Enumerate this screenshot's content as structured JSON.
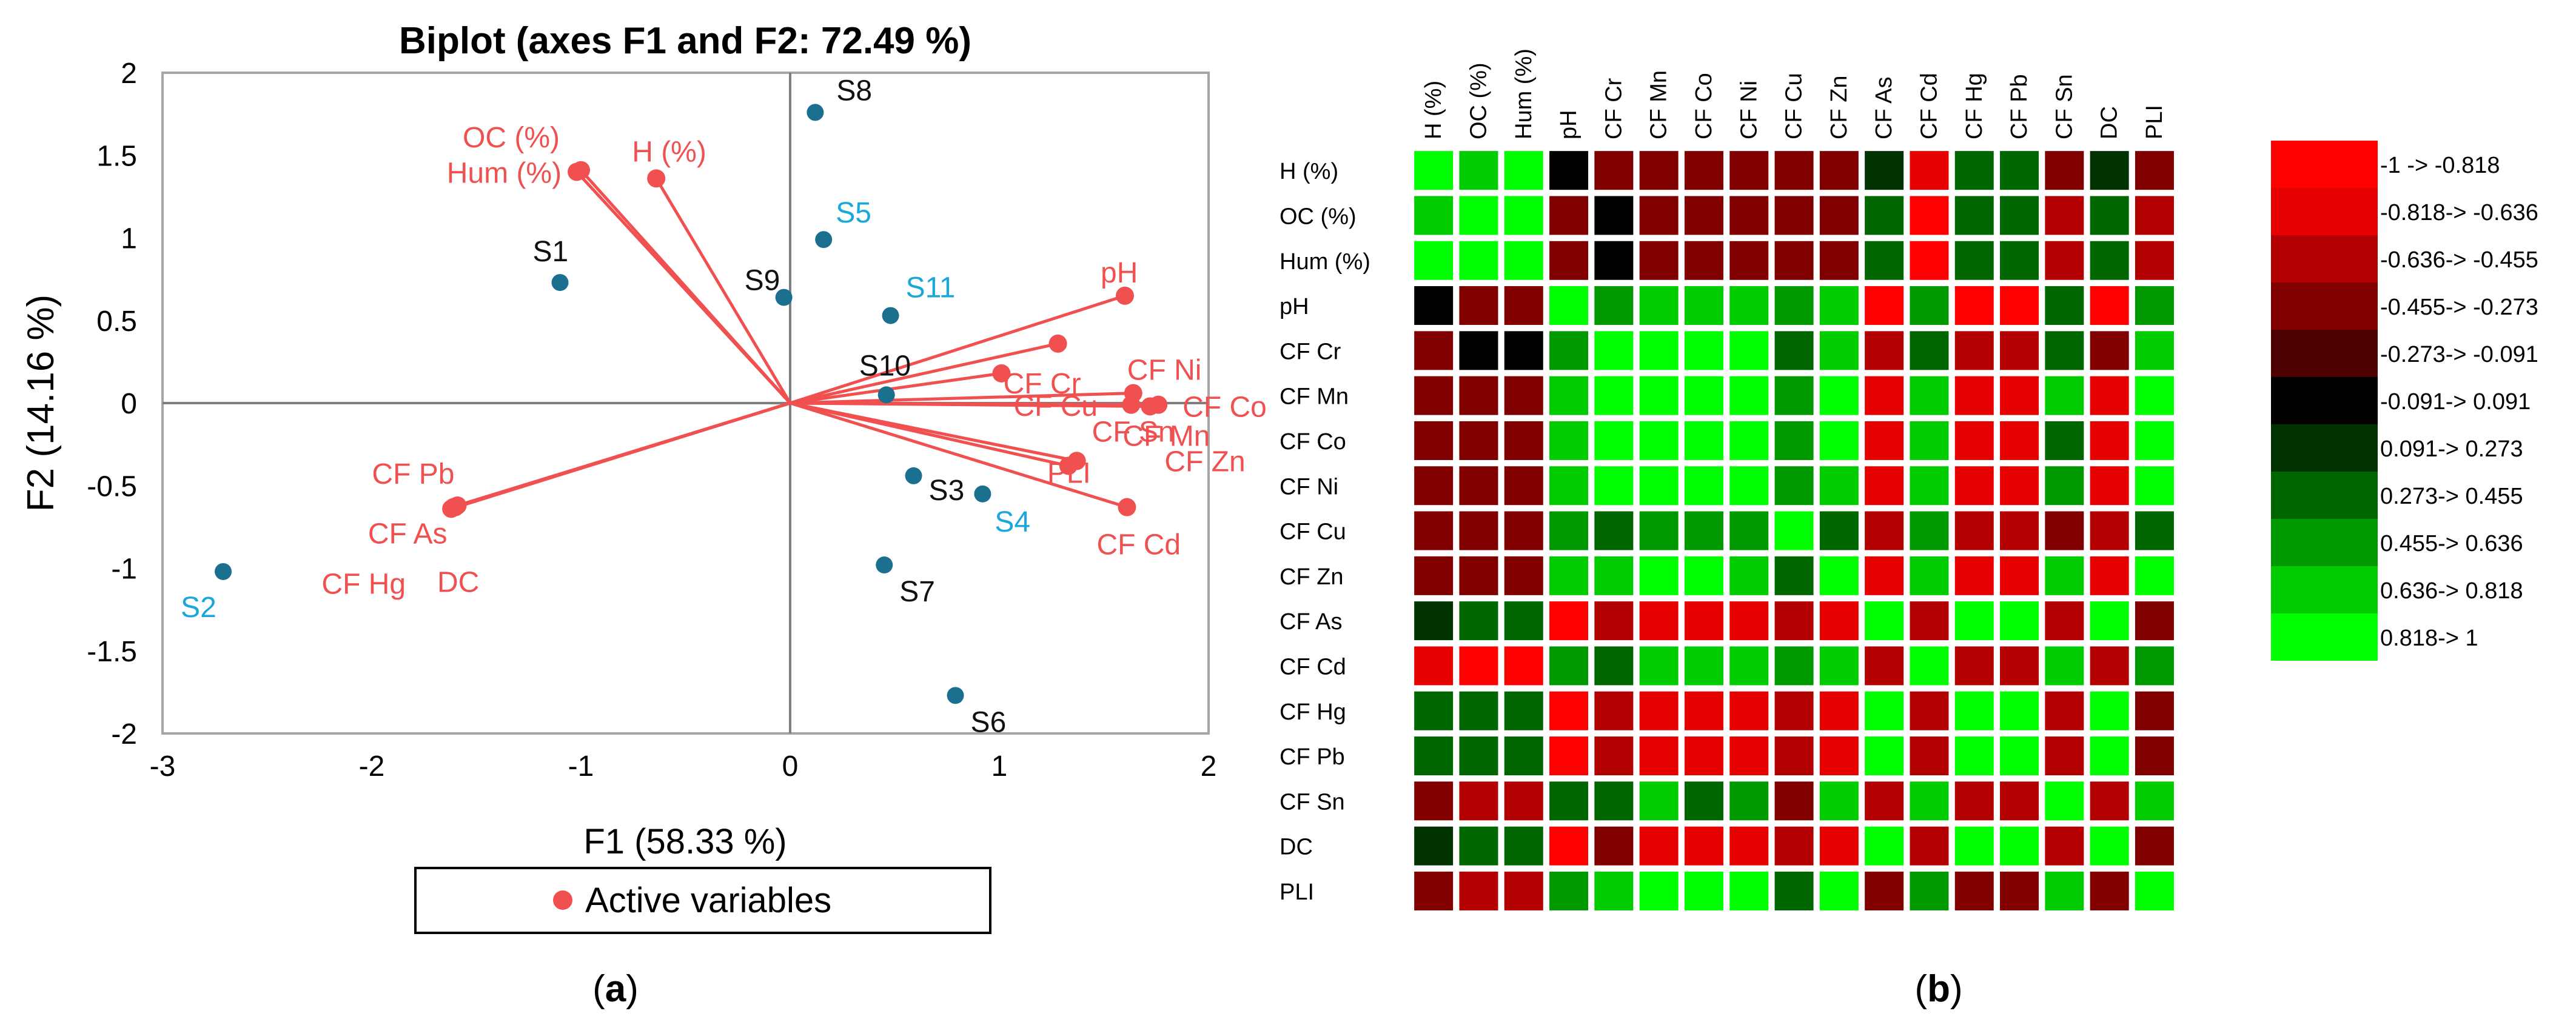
{
  "colors": {
    "vector": "#f05050",
    "obs_dark": "#1b6f8f",
    "obs_label_dark": "#111111",
    "obs_label_light": "#1aa7d9",
    "axis_box": "#a6a6a6",
    "zero_line": "#7f7f7f",
    "scale": [
      "#ff0000",
      "#e60000",
      "#b30000",
      "#800000",
      "#4d0000",
      "#000000",
      "#003300",
      "#006600",
      "#009900",
      "#00cc00",
      "#00ff00"
    ]
  },
  "panel_a": {
    "label_open": "(",
    "label_letter": "a",
    "label_close": ")",
    "legend_text": "Active variables"
  },
  "panel_b": {
    "label_open": "(",
    "label_letter": "b",
    "label_close": ")"
  },
  "chart_data": [
    {
      "type": "scatter",
      "subtype": "pca-biplot",
      "title": "Biplot (axes F1 and F2: 72.49 %)",
      "xlabel": "F1 (58.33 %)",
      "ylabel": "F2 (14.16 %)",
      "xlim": [
        -3,
        2
      ],
      "ylim": [
        -2,
        2
      ],
      "xticks": [
        -3,
        -2,
        -1,
        0,
        1,
        2
      ],
      "yticks": [
        -2,
        -1.5,
        -1,
        -0.5,
        0,
        0.5,
        1,
        1.5,
        2
      ],
      "legend": [
        "Active variables"
      ],
      "variables": [
        {
          "name": "OC (%)",
          "x": -1.0,
          "y": 1.41
        },
        {
          "name": "Hum (%)",
          "x": -1.02,
          "y": 1.4
        },
        {
          "name": "H (%)",
          "x": -0.64,
          "y": 1.36
        },
        {
          "name": "pH",
          "x": 1.6,
          "y": 0.65
        },
        {
          "name": "CF Cr",
          "x": 1.28,
          "y": 0.36
        },
        {
          "name": "CF Cu",
          "x": 1.01,
          "y": 0.18
        },
        {
          "name": "CF Ni",
          "x": 1.64,
          "y": 0.06
        },
        {
          "name": "CF Co",
          "x": 1.76,
          "y": -0.01
        },
        {
          "name": "CF Mn",
          "x": 1.72,
          "y": -0.02
        },
        {
          "name": "CF Zn",
          "x": 1.63,
          "y": -0.01
        },
        {
          "name": "CF Sn",
          "x": 1.37,
          "y": -0.35
        },
        {
          "name": "PLI",
          "x": 1.33,
          "y": -0.38
        },
        {
          "name": "CF Cd",
          "x": 1.61,
          "y": -0.63
        },
        {
          "name": "CF Pb",
          "x": -1.59,
          "y": -0.62
        },
        {
          "name": "CF As",
          "x": -1.61,
          "y": -0.63
        },
        {
          "name": "CF Hg",
          "x": -1.62,
          "y": -0.64
        },
        {
          "name": "DC",
          "x": -1.6,
          "y": -0.63
        }
      ],
      "observations": [
        {
          "name": "S1",
          "x": -1.1,
          "y": 0.73,
          "highlight": false
        },
        {
          "name": "S2",
          "x": -2.71,
          "y": -1.02,
          "highlight": true
        },
        {
          "name": "S3",
          "x": 0.59,
          "y": -0.44,
          "highlight": false
        },
        {
          "name": "S4",
          "x": 0.92,
          "y": -0.55,
          "highlight": true
        },
        {
          "name": "S5",
          "x": 0.16,
          "y": 0.99,
          "highlight": true
        },
        {
          "name": "S6",
          "x": 0.79,
          "y": -1.77,
          "highlight": false
        },
        {
          "name": "S7",
          "x": 0.45,
          "y": -0.98,
          "highlight": false
        },
        {
          "name": "S8",
          "x": 0.12,
          "y": 1.76,
          "highlight": false
        },
        {
          "name": "S9",
          "x": -0.03,
          "y": 0.64,
          "highlight": false
        },
        {
          "name": "S10",
          "x": 0.46,
          "y": 0.05,
          "highlight": false
        },
        {
          "name": "S11",
          "x": 0.48,
          "y": 0.53,
          "highlight": true
        }
      ]
    },
    {
      "type": "heatmap",
      "title": "",
      "rows": [
        "H (%)",
        "OC (%)",
        "Hum (%)",
        "pH",
        "CF Cr",
        "CF Mn",
        "CF Co",
        "CF Ni",
        "CF Cu",
        "CF Zn",
        "CF As",
        "CF Cd",
        "CF Hg",
        "CF Pb",
        "CF Sn",
        "DC",
        "PLI"
      ],
      "columns": [
        "H (%)",
        "OC (%)",
        "Hum (%)",
        "pH",
        "CF Cr",
        "CF Mn",
        "CF Co",
        "CF Ni",
        "CF Cu",
        "CF Zn",
        "CF As",
        "CF Cd",
        "CF Hg",
        "CF Pb",
        "CF Sn",
        "DC",
        "PLI"
      ],
      "values": [
        [
          1,
          0.75,
          0.9,
          -0.05,
          -0.33,
          -0.4,
          -0.4,
          -0.4,
          -0.35,
          -0.35,
          0.2,
          -0.65,
          0.35,
          0.3,
          -0.45,
          0.2,
          -0.45
        ],
        [
          0.75,
          1,
          0.95,
          -0.4,
          -0.05,
          -0.4,
          -0.45,
          -0.45,
          -0.35,
          -0.4,
          0.35,
          -0.9,
          0.4,
          0.35,
          -0.5,
          0.3,
          -0.5
        ],
        [
          0.9,
          0.95,
          1,
          -0.4,
          -0.05,
          -0.4,
          -0.45,
          -0.45,
          -0.35,
          -0.4,
          0.4,
          -0.9,
          0.4,
          0.35,
          -0.5,
          0.3,
          -0.5
        ],
        [
          -0.05,
          -0.4,
          -0.4,
          1,
          0.5,
          0.75,
          0.75,
          0.75,
          0.55,
          0.65,
          -0.9,
          0.55,
          -0.9,
          -0.9,
          0.35,
          -0.9,
          0.5
        ],
        [
          -0.33,
          -0.05,
          -0.05,
          0.5,
          1,
          0.85,
          0.85,
          0.85,
          0.35,
          0.65,
          -0.5,
          0.3,
          -0.6,
          -0.6,
          0.4,
          -0.35,
          0.65
        ],
        [
          -0.4,
          -0.4,
          -0.4,
          0.75,
          0.85,
          1,
          0.95,
          0.9,
          0.6,
          0.85,
          -0.75,
          0.7,
          -0.75,
          -0.75,
          0.65,
          -0.75,
          0.9
        ],
        [
          -0.4,
          -0.45,
          -0.45,
          0.75,
          0.85,
          0.95,
          1,
          0.9,
          0.6,
          0.85,
          -0.65,
          0.7,
          -0.7,
          -0.7,
          0.3,
          -0.7,
          0.85
        ],
        [
          -0.4,
          -0.45,
          -0.45,
          0.75,
          0.85,
          0.9,
          0.9,
          1,
          0.5,
          0.8,
          -0.65,
          0.7,
          -0.7,
          -0.7,
          0.5,
          -0.7,
          0.85
        ],
        [
          -0.35,
          -0.35,
          -0.35,
          0.55,
          0.35,
          0.6,
          0.6,
          0.5,
          1,
          0.45,
          -0.55,
          0.6,
          -0.6,
          -0.6,
          -0.35,
          -0.6,
          0.35
        ],
        [
          -0.35,
          -0.4,
          -0.4,
          0.65,
          0.65,
          0.85,
          0.85,
          0.8,
          0.45,
          1,
          -0.65,
          0.75,
          -0.7,
          -0.7,
          0.65,
          -0.7,
          0.85
        ],
        [
          0.2,
          0.35,
          0.4,
          -0.9,
          -0.5,
          -0.75,
          -0.65,
          -0.65,
          -0.55,
          -0.65,
          1,
          -0.55,
          0.95,
          0.95,
          -0.5,
          0.9,
          -0.45
        ],
        [
          -0.65,
          -0.9,
          -0.9,
          0.55,
          0.3,
          0.7,
          0.7,
          0.7,
          0.6,
          0.75,
          -0.55,
          1,
          -0.6,
          -0.6,
          0.65,
          -0.6,
          0.55
        ],
        [
          0.35,
          0.4,
          0.4,
          -0.9,
          -0.6,
          -0.75,
          -0.7,
          -0.7,
          -0.6,
          -0.7,
          0.95,
          -0.6,
          1,
          0.95,
          -0.6,
          0.9,
          -0.45
        ],
        [
          0.3,
          0.35,
          0.35,
          -0.9,
          -0.6,
          -0.75,
          -0.7,
          -0.7,
          -0.6,
          -0.7,
          0.95,
          -0.6,
          0.95,
          1,
          -0.6,
          0.9,
          -0.45
        ],
        [
          -0.45,
          -0.5,
          -0.5,
          0.35,
          0.4,
          0.65,
          0.3,
          0.5,
          -0.35,
          0.65,
          -0.5,
          0.65,
          -0.6,
          -0.6,
          1,
          -0.55,
          0.65
        ],
        [
          0.2,
          0.3,
          0.3,
          -0.9,
          -0.35,
          -0.75,
          -0.7,
          -0.7,
          -0.6,
          -0.7,
          0.9,
          -0.6,
          0.9,
          0.9,
          -0.55,
          1,
          -0.45
        ],
        [
          -0.45,
          -0.5,
          -0.5,
          0.5,
          0.65,
          0.9,
          0.85,
          0.85,
          0.35,
          0.85,
          -0.45,
          0.55,
          -0.45,
          -0.45,
          0.65,
          -0.45,
          1
        ]
      ],
      "scale": {
        "labels": [
          "-1 -> -0.818",
          "-0.818-> -0.636",
          "-0.636-> -0.455",
          "-0.455-> -0.273",
          "-0.273-> -0.091",
          "-0.091-> 0.091",
          "0.091-> 0.273",
          "0.273-> 0.455",
          "0.455-> 0.636",
          "0.636-> 0.818",
          "0.818-> 1"
        ],
        "bounds": [
          -1,
          -0.818,
          -0.636,
          -0.455,
          -0.273,
          -0.091,
          0.091,
          0.273,
          0.455,
          0.636,
          0.818,
          1
        ]
      }
    }
  ]
}
